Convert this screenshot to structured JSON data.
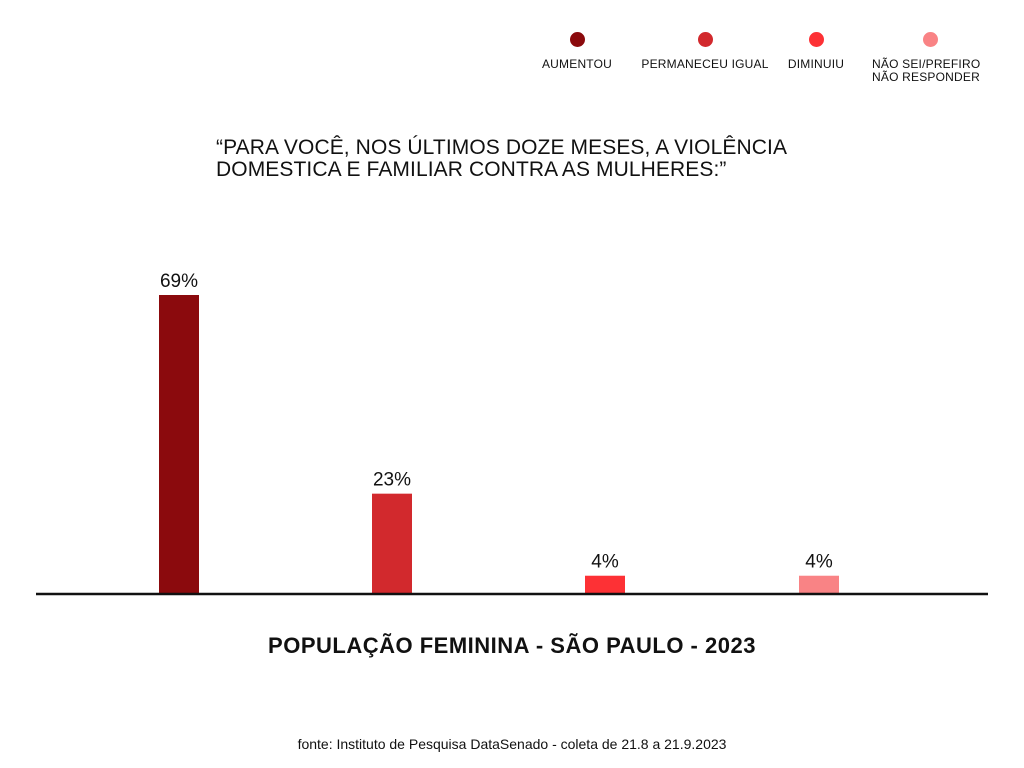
{
  "legend": {
    "items": [
      {
        "label": "AUMENTOU",
        "color": "#8b0a0d"
      },
      {
        "label": "PERMANECEU IGUAL",
        "color": "#d2292d"
      },
      {
        "label": "DIMINUIU",
        "color": "#fd3135"
      },
      {
        "label": "NÃO SEI/PREFIRO\nNÃO RESPONDER",
        "color": "#f98385"
      }
    ]
  },
  "question": "“PARA VOCÊ, NOS ÚLTIMOS DOZE MESES, A VIOLÊNCIA\nDOMESTICA E FAMILIAR CONTRA AS MULHERES:”",
  "source": "fonte: Instituto de Pesquisa DataSenado -  coleta de 21.8 a 21.9.2023",
  "chart_data": {
    "type": "bar",
    "title": "“PARA VOCÊ, NOS ÚLTIMOS DOZE MESES, A VIOLÊNCIA DOMESTICA E FAMILIAR CONTRA AS MULHERES:”",
    "categories": [
      "POPULAÇÃO FEMININA - SÃO PAULO - 2023"
    ],
    "series": [
      {
        "name": "AUMENTOU",
        "values": [
          69
        ],
        "label": "69%",
        "color": "#8b0a0d"
      },
      {
        "name": "PERMANECEU IGUAL",
        "values": [
          23
        ],
        "label": "23%",
        "color": "#d2292d"
      },
      {
        "name": "DIMINUIU",
        "values": [
          4
        ],
        "label": "4%",
        "color": "#fd3135"
      },
      {
        "name": "NÃO SEI/PREFIRO NÃO RESPONDER",
        "values": [
          4
        ],
        "label": "4%",
        "color": "#f98385"
      }
    ],
    "unit": "%",
    "ylim": [
      0,
      75
    ],
    "grid": false,
    "legend": "top-right"
  }
}
